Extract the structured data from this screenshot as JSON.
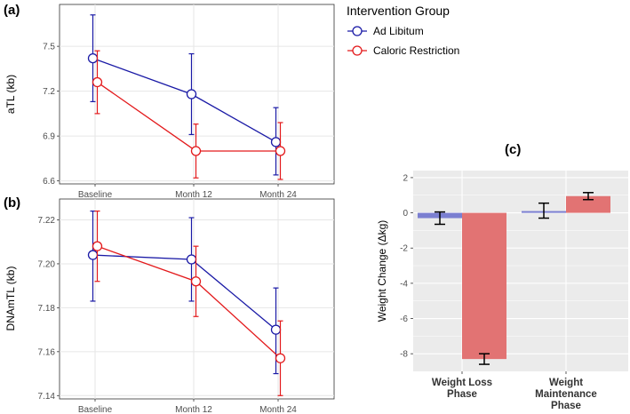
{
  "colors": {
    "ad_libitum": "#1a1aa6",
    "caloric_restriction": "#e31a1c",
    "bar_ad_libitum": "#7b7fd1",
    "bar_caloric_restriction": "#e27373",
    "panel_bg_ab": "#ffffff",
    "panel_bg_c": "#ebebeb",
    "grid_ab": "#e6e6e6",
    "grid_c": "#ffffff"
  },
  "legend": {
    "title": "Intervention Group",
    "items": [
      {
        "label": "Ad Libitum",
        "color": "#1a1aa6"
      },
      {
        "label": "Caloric Restriction",
        "color": "#e31a1c"
      }
    ]
  },
  "chart_data": [
    {
      "panel": "(a)",
      "type": "line",
      "ylabel": "aTL (kb)",
      "xlabel": "",
      "categories": [
        "Baseline",
        "Month 12",
        "Month 24"
      ],
      "ylim": [
        6.58,
        7.78
      ],
      "yticks": [
        "6.6",
        "6.9",
        "7.2",
        "7.5"
      ],
      "grid": true,
      "series": [
        {
          "name": "Ad Libitum",
          "values": [
            7.42,
            7.18,
            6.86
          ],
          "err_low": [
            7.13,
            6.91,
            6.64
          ],
          "err_high": [
            7.71,
            7.45,
            7.09
          ]
        },
        {
          "name": "Caloric Restriction",
          "values": [
            7.26,
            6.8,
            6.8
          ],
          "err_low": [
            7.05,
            6.62,
            6.61
          ],
          "err_high": [
            7.47,
            6.98,
            6.99
          ]
        }
      ]
    },
    {
      "panel": "(b)",
      "type": "line",
      "ylabel": "DNAmTL (kb)",
      "xlabel": "",
      "categories": [
        "Baseline",
        "Month 12",
        "Month 24"
      ],
      "ylim": [
        7.1385,
        7.2295
      ],
      "yticks": [
        "7.14",
        "7.16",
        "7.18",
        "7.20",
        "7.22"
      ],
      "grid": true,
      "series": [
        {
          "name": "Ad Libitum",
          "values": [
            7.204,
            7.202,
            7.17
          ],
          "err_low": [
            7.183,
            7.183,
            7.15
          ],
          "err_high": [
            7.224,
            7.221,
            7.189
          ]
        },
        {
          "name": "Caloric Restriction",
          "values": [
            7.208,
            7.192,
            7.157
          ],
          "err_low": [
            7.192,
            7.176,
            7.14
          ],
          "err_high": [
            7.224,
            7.208,
            7.174
          ]
        }
      ]
    },
    {
      "panel": "(c)",
      "type": "bar",
      "ylabel": "Weight Change (Δkg)",
      "xlabel": "",
      "categories": [
        [
          "Weight Loss",
          "Phase"
        ],
        [
          "Weight",
          "Maintenance",
          "Phase"
        ]
      ],
      "ylim": [
        -9.0,
        2.4
      ],
      "yticks": [
        "-8",
        "-6",
        "-4",
        "-2",
        "0",
        "2"
      ],
      "grid": true,
      "series": [
        {
          "name": "Ad Libitum",
          "values": [
            -0.3,
            0.1
          ],
          "err_low": [
            -0.65,
            -0.3
          ],
          "err_high": [
            0.05,
            0.55
          ]
        },
        {
          "name": "Caloric Restriction",
          "values": [
            -8.3,
            0.95
          ],
          "err_low": [
            -8.6,
            0.75
          ],
          "err_high": [
            -8.0,
            1.15
          ]
        }
      ]
    }
  ]
}
